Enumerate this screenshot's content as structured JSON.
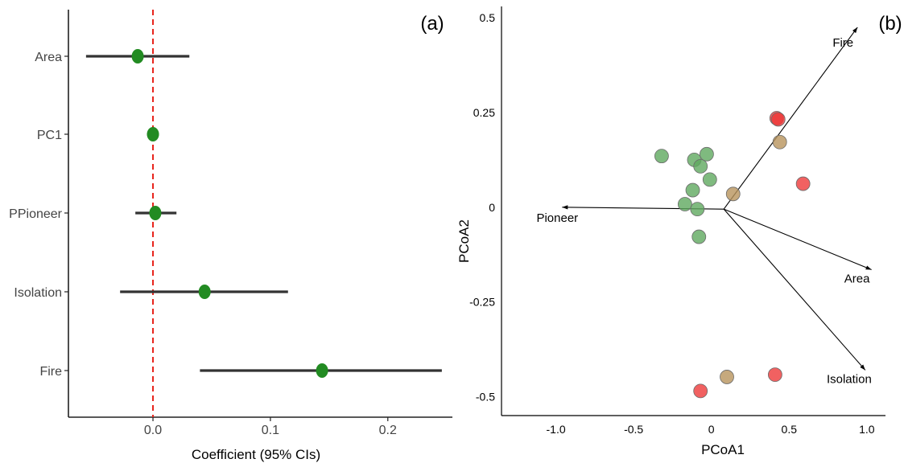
{
  "chart_data": [
    {
      "type": "forest",
      "panel_label": "(a)",
      "title": "",
      "xlabel": "Coefficient (95% CIs)",
      "ylabel": "",
      "xlim": [
        -0.072,
        0.255
      ],
      "xticks": [
        0.0,
        0.1,
        0.2
      ],
      "xtick_labels": [
        "0.0",
        "0.1",
        "0.2"
      ],
      "reference_line": 0.0,
      "reference_line_color": "#e8231b",
      "point_color": "#228b22",
      "ci_color": "#333333",
      "grid": false,
      "terms": [
        {
          "label": "Area",
          "estimate": -0.013,
          "ci_low": -0.057,
          "ci_high": 0.031
        },
        {
          "label": "PC1",
          "estimate": 0.0,
          "ci_low": -0.005,
          "ci_high": 0.005
        },
        {
          "label": "PPioneer",
          "estimate": 0.002,
          "ci_low": -0.015,
          "ci_high": 0.02
        },
        {
          "label": "Isolation",
          "estimate": 0.044,
          "ci_low": -0.028,
          "ci_high": 0.115
        },
        {
          "label": "Fire",
          "estimate": 0.144,
          "ci_low": 0.04,
          "ci_high": 0.246
        }
      ]
    },
    {
      "type": "scatter",
      "panel_label": "(b)",
      "title": "",
      "xlabel": "PCoA1",
      "ylabel": "PCoA2",
      "xlim": [
        -1.35,
        1.12
      ],
      "ylim": [
        -0.55,
        0.53
      ],
      "xticks": [
        -1.0,
        -0.5,
        0,
        0.5,
        1.0
      ],
      "xtick_labels": [
        "-1.0",
        "-0.5",
        "0",
        "0.5",
        "1.0"
      ],
      "yticks": [
        0.5,
        0.25,
        0,
        -0.25,
        -0.5
      ],
      "ytick_labels": [
        "0.5",
        "0.25",
        "0",
        "-0.25",
        "-0.5"
      ],
      "grid": false,
      "origin": [
        0.08,
        -0.005
      ],
      "vectors": [
        {
          "label": "Fire",
          "x": 0.94,
          "y": 0.475
        },
        {
          "label": "Pioneer",
          "x": -0.96,
          "y": 0.0
        },
        {
          "label": "Area",
          "x": 1.03,
          "y": -0.165
        },
        {
          "label": "Isolation",
          "x": 0.99,
          "y": -0.43
        }
      ],
      "groups": [
        {
          "color": "#5fa95f",
          "points": [
            [
              -0.32,
              0.135
            ],
            [
              -0.11,
              0.125
            ],
            [
              -0.03,
              0.14
            ],
            [
              -0.07,
              0.108
            ],
            [
              -0.12,
              0.045
            ],
            [
              -0.01,
              0.073
            ],
            [
              -0.17,
              0.008
            ],
            [
              -0.09,
              -0.005
            ],
            [
              -0.08,
              -0.078
            ]
          ]
        },
        {
          "color": "#b8935c",
          "points": [
            [
              0.14,
              0.035
            ],
            [
              0.44,
              0.172
            ],
            [
              0.1,
              -0.448
            ]
          ]
        },
        {
          "color": "#ee3a3a",
          "points": [
            [
              0.42,
              0.235
            ],
            [
              0.43,
              0.232
            ],
            [
              0.59,
              0.062
            ],
            [
              0.41,
              -0.442
            ],
            [
              -0.07,
              -0.485
            ]
          ]
        }
      ]
    }
  ]
}
